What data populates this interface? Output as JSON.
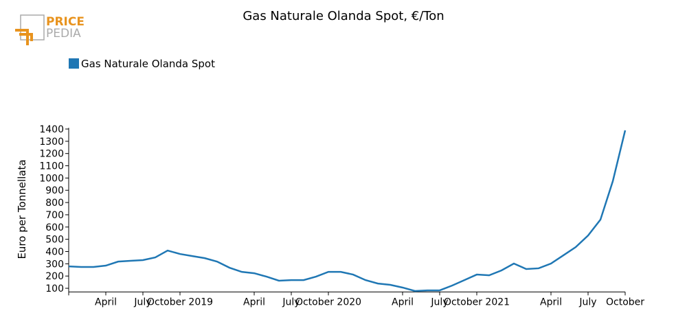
{
  "logo": {
    "line1": "PRICE",
    "line2": "PEDIA"
  },
  "chart_data": {
    "type": "line",
    "title": "Gas Naturale Olanda Spot, €/Ton",
    "y_label": "Euro per Tonnellata",
    "categories": [
      null,
      null,
      null,
      "April",
      null,
      null,
      "July",
      null,
      null,
      "October 2019",
      null,
      null,
      null,
      null,
      null,
      "April",
      null,
      null,
      "July",
      null,
      null,
      "October 2020",
      null,
      null,
      null,
      null,
      null,
      "April",
      null,
      null,
      "July",
      null,
      null,
      "October 2021",
      null,
      null,
      null,
      null,
      null,
      "April",
      null,
      null,
      "July",
      null,
      null,
      "October"
    ],
    "series": [
      {
        "name": "Gas Naturale Olanda Spot",
        "color": "#1f77b4",
        "values": [
          279,
          274,
          274,
          285,
          318,
          324,
          330,
          352,
          408,
          380,
          363,
          346,
          318,
          268,
          234,
          223,
          195,
          162,
          167,
          167,
          195,
          234,
          234,
          212,
          167,
          139,
          128,
          106,
          78,
          83,
          83,
          122,
          167,
          212,
          206,
          246,
          302,
          257,
          263,
          302,
          369,
          436,
          531,
          660,
          974,
          1389
        ]
      }
    ],
    "ylim": [
      70,
      1410
    ],
    "yticks": [
      100,
      200,
      300,
      400,
      500,
      600,
      700,
      800,
      900,
      1000,
      1100,
      1200,
      1300,
      1400
    ],
    "legend": "top-left"
  }
}
